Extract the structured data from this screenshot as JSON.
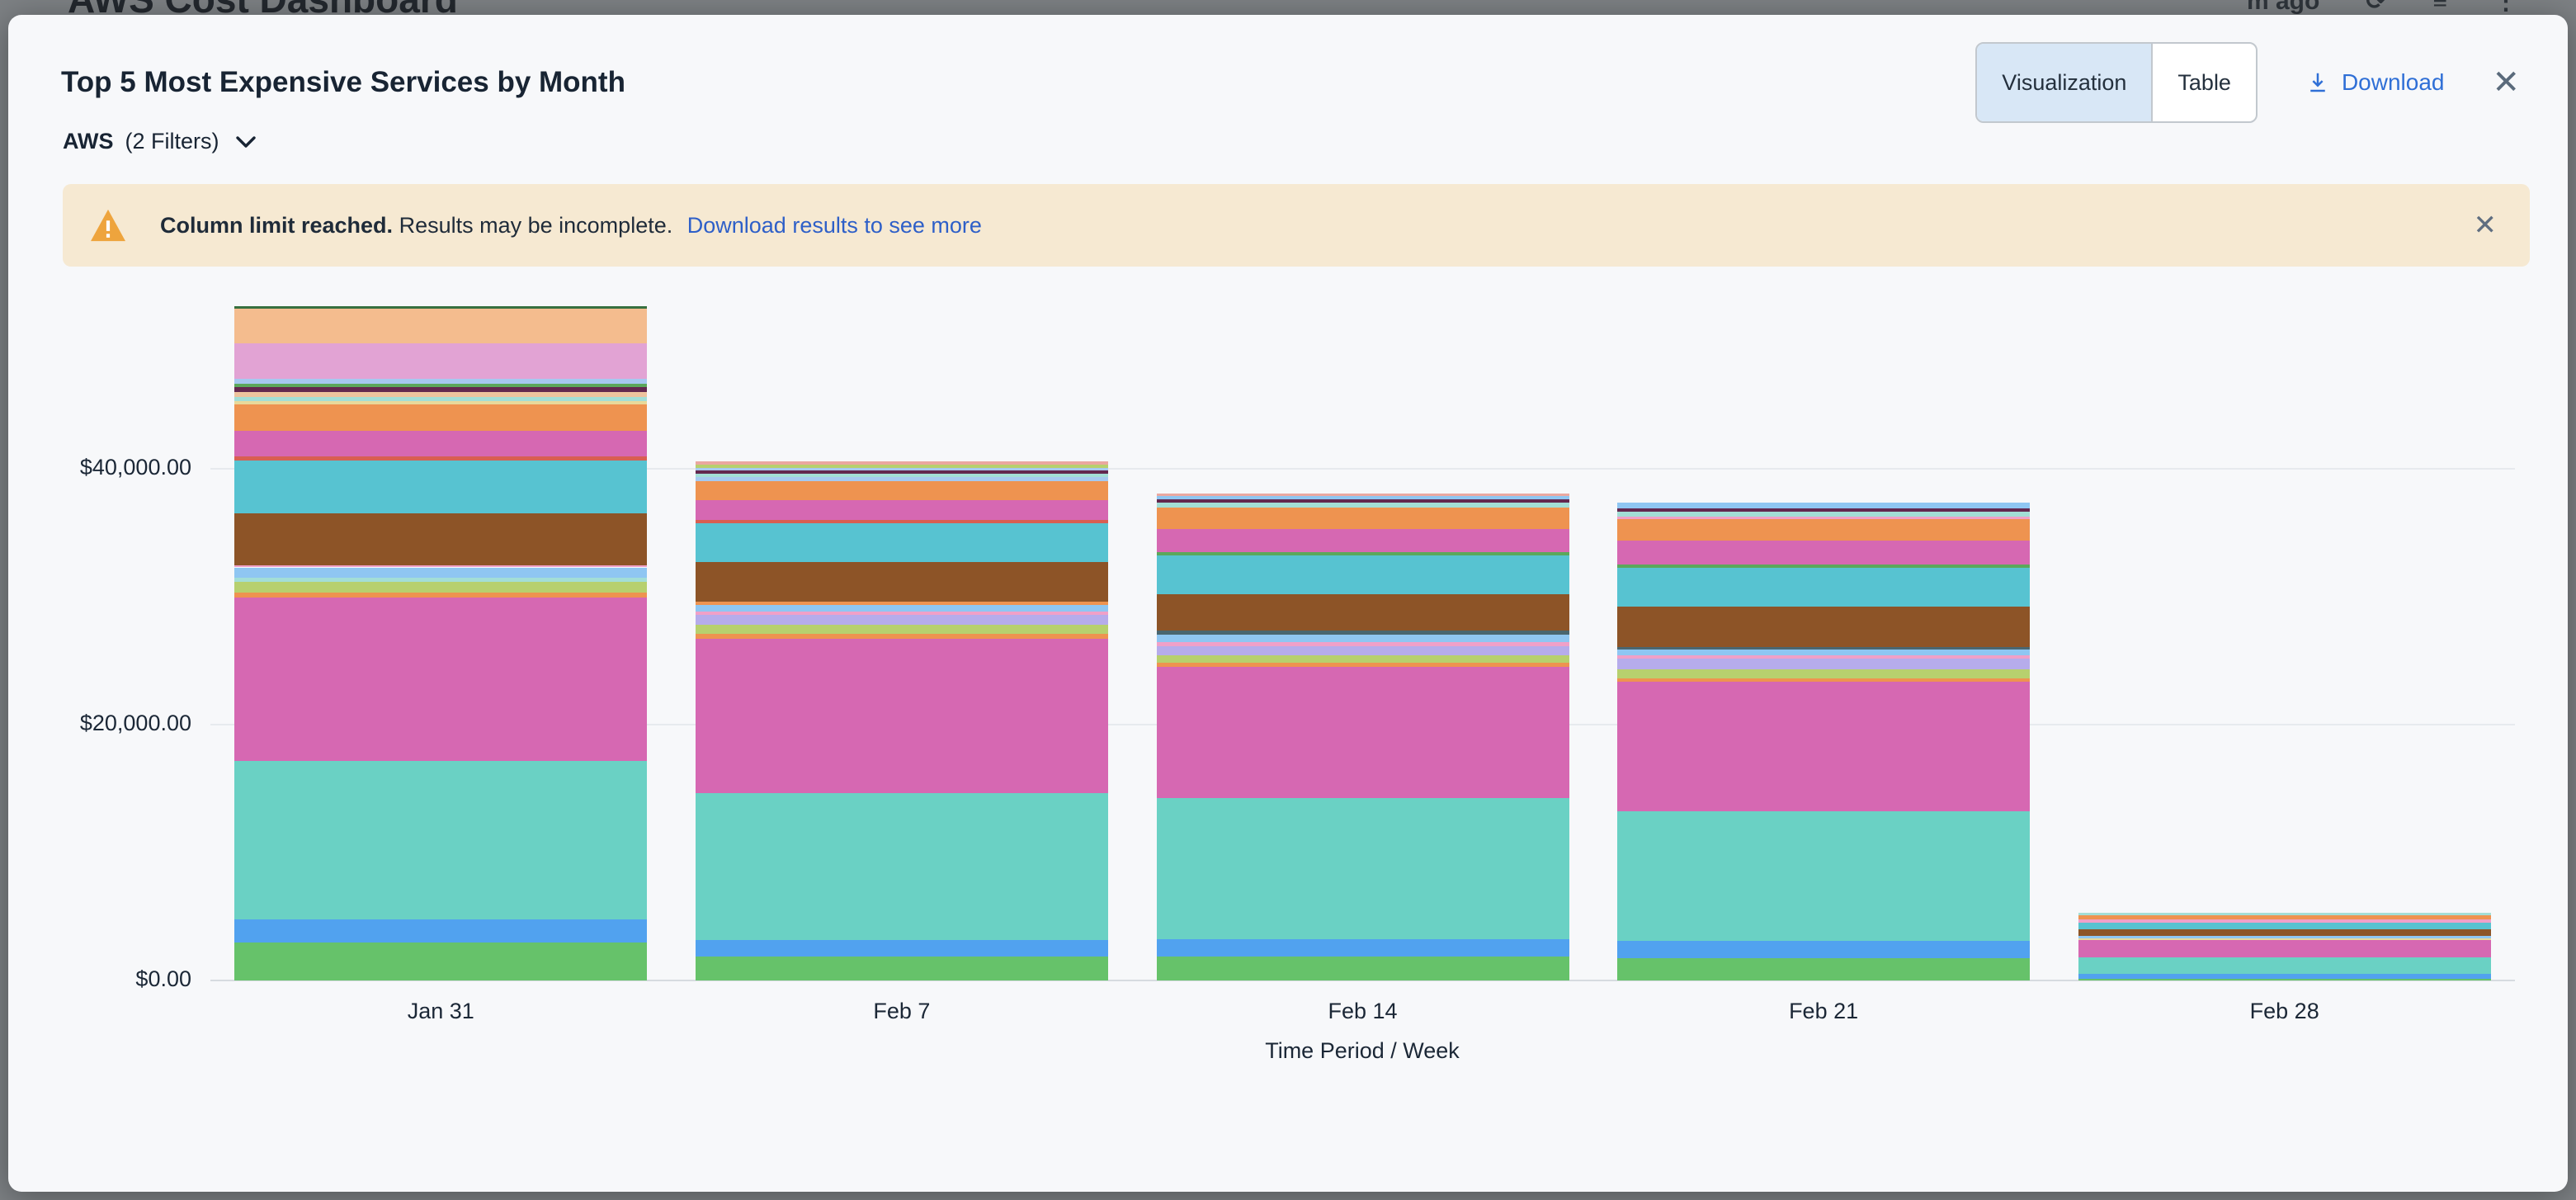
{
  "overlay": {
    "page_title": "AWS Cost Dashboard",
    "timestamp_fragment": "m ago"
  },
  "header": {
    "title": "Top 5 Most Expensive Services by Month",
    "view_toggle": {
      "options": [
        "Visualization",
        "Table"
      ],
      "active": "Visualization"
    },
    "download_label": "Download",
    "close_glyph": "✕"
  },
  "filter": {
    "name": "AWS",
    "count_label": "(2 Filters)"
  },
  "banner": {
    "bold": "Column limit reached.",
    "text": "Results may be incomplete.",
    "link": "Download results to see more",
    "close_glyph": "✕",
    "background": "#f6e9d2",
    "icon_color": "#eea43d"
  },
  "chart_data": {
    "type": "bar",
    "stacked": true,
    "title": "Top 5 Most Expensive Services by Month",
    "xlabel": "Time Period / Week",
    "ylabel": "",
    "grid": true,
    "legend": "none",
    "categories": [
      "Jan 31",
      "Feb 7",
      "Feb 14",
      "Feb 21",
      "Feb 28"
    ],
    "y_ticks": [
      {
        "label": "$0.00",
        "value": 0
      },
      {
        "label": "$20,000.00",
        "value": 20000
      },
      {
        "label": "$40,000.00",
        "value": 40000
      }
    ],
    "ylim": [
      0,
      55000
    ],
    "totals_usd": [
      52720,
      40590,
      38070,
      37360,
      5300
    ],
    "bars": [
      {
        "category": "Jan 31",
        "segments": [
          {
            "color": "#66c26a",
            "value": 2950
          },
          {
            "color": "#51a2ef",
            "value": 1850
          },
          {
            "color": "#6ad1c4",
            "value": 12350
          },
          {
            "color": "#d668b2",
            "value": 12800
          },
          {
            "color": "#ee9350",
            "value": 390
          },
          {
            "color": "#b7d06e",
            "value": 790
          },
          {
            "color": "#a3ded6",
            "value": 370
          },
          {
            "color": "#8fc6f2",
            "value": 790
          },
          {
            "color": "#f0a0c8",
            "value": 150
          },
          {
            "color": "#8d5427",
            "value": 4060
          },
          {
            "color": "#57c3d1",
            "value": 4120
          },
          {
            "color": "#d85f52",
            "value": 320
          },
          {
            "color": "#d668b2",
            "value": 2020
          },
          {
            "color": "#ee9350",
            "value": 2100
          },
          {
            "color": "#e8d99a",
            "value": 215
          },
          {
            "color": "#a3ded6",
            "value": 355
          },
          {
            "color": "#eec39e",
            "value": 390
          },
          {
            "color": "#63284f",
            "value": 390
          },
          {
            "color": "#5ba85b",
            "value": 210
          },
          {
            "color": "#a6c9f0",
            "value": 430
          },
          {
            "color": "#e2a3d4",
            "value": 2770
          },
          {
            "color": "#f4bc8e",
            "value": 2700
          },
          {
            "color": "#37703f",
            "value": 200
          }
        ]
      },
      {
        "category": "Feb 7",
        "segments": [
          {
            "color": "#66c26a",
            "value": 1870
          },
          {
            "color": "#51a2ef",
            "value": 1290
          },
          {
            "color": "#6ad1c4",
            "value": 11480
          },
          {
            "color": "#d668b2",
            "value": 12060
          },
          {
            "color": "#ee9350",
            "value": 390
          },
          {
            "color": "#b7d06e",
            "value": 720
          },
          {
            "color": "#b6aceb",
            "value": 770
          },
          {
            "color": "#f0a0c8",
            "value": 250
          },
          {
            "color": "#8fc6f2",
            "value": 500
          },
          {
            "color": "#ee9350",
            "value": 260
          },
          {
            "color": "#8d5427",
            "value": 3150
          },
          {
            "color": "#57c3d1",
            "value": 3020
          },
          {
            "color": "#d85f52",
            "value": 250
          },
          {
            "color": "#d668b2",
            "value": 1540
          },
          {
            "color": "#ee9350",
            "value": 1480
          },
          {
            "color": "#a6c9f0",
            "value": 320
          },
          {
            "color": "#a3ded6",
            "value": 260
          },
          {
            "color": "#63284f",
            "value": 270
          },
          {
            "color": "#a6c9f0",
            "value": 190
          },
          {
            "color": "#b7d06e",
            "value": 260
          },
          {
            "color": "#eba8a0",
            "value": 260
          }
        ]
      },
      {
        "category": "Feb 14",
        "segments": [
          {
            "color": "#66c26a",
            "value": 1890
          },
          {
            "color": "#51a2ef",
            "value": 1350
          },
          {
            "color": "#6ad1c4",
            "value": 11020
          },
          {
            "color": "#d668b2",
            "value": 10250
          },
          {
            "color": "#ee9350",
            "value": 340
          },
          {
            "color": "#b7d06e",
            "value": 570
          },
          {
            "color": "#b6aceb",
            "value": 730
          },
          {
            "color": "#f0a0c8",
            "value": 310
          },
          {
            "color": "#8fc6f2",
            "value": 600
          },
          {
            "color": "#4a6670",
            "value": 310
          },
          {
            "color": "#8d5427",
            "value": 2850
          },
          {
            "color": "#57c3d1",
            "value": 3030
          },
          {
            "color": "#5ba85b",
            "value": 260
          },
          {
            "color": "#d668b2",
            "value": 1760
          },
          {
            "color": "#ee9350",
            "value": 1680
          },
          {
            "color": "#a3ded6",
            "value": 390
          },
          {
            "color": "#63284f",
            "value": 260
          },
          {
            "color": "#8fc6f2",
            "value": 260
          },
          {
            "color": "#eba8a0",
            "value": 210
          }
        ]
      },
      {
        "category": "Feb 21",
        "segments": [
          {
            "color": "#66c26a",
            "value": 1760
          },
          {
            "color": "#51a2ef",
            "value": 1360
          },
          {
            "color": "#6ad1c4",
            "value": 10080
          },
          {
            "color": "#d668b2",
            "value": 10150
          },
          {
            "color": "#ee9350",
            "value": 290
          },
          {
            "color": "#b7d06e",
            "value": 700
          },
          {
            "color": "#b6aceb",
            "value": 800
          },
          {
            "color": "#f0a0c8",
            "value": 250
          },
          {
            "color": "#8fc6f2",
            "value": 500
          },
          {
            "color": "#4a6670",
            "value": 200
          },
          {
            "color": "#8d5427",
            "value": 3150
          },
          {
            "color": "#57c3d1",
            "value": 3010
          },
          {
            "color": "#5ba85b",
            "value": 250
          },
          {
            "color": "#d668b2",
            "value": 1860
          },
          {
            "color": "#ee9350",
            "value": 1700
          },
          {
            "color": "#f0a0c8",
            "value": 200
          },
          {
            "color": "#a3ded6",
            "value": 400
          },
          {
            "color": "#63284f",
            "value": 250
          },
          {
            "color": "#8fc6f2",
            "value": 450
          }
        ]
      },
      {
        "category": "Feb 28",
        "segments": [
          {
            "color": "#66c26a",
            "value": 150
          },
          {
            "color": "#51a2ef",
            "value": 350
          },
          {
            "color": "#6ad1c4",
            "value": 1300
          },
          {
            "color": "#d668b2",
            "value": 1350
          },
          {
            "color": "#e8d99a",
            "value": 120
          },
          {
            "color": "#8fc6f2",
            "value": 230
          },
          {
            "color": "#8d5427",
            "value": 500
          },
          {
            "color": "#57c3d1",
            "value": 500
          },
          {
            "color": "#f0a0c8",
            "value": 250
          },
          {
            "color": "#ee9350",
            "value": 350
          },
          {
            "color": "#a3ded6",
            "value": 200
          }
        ]
      }
    ]
  }
}
